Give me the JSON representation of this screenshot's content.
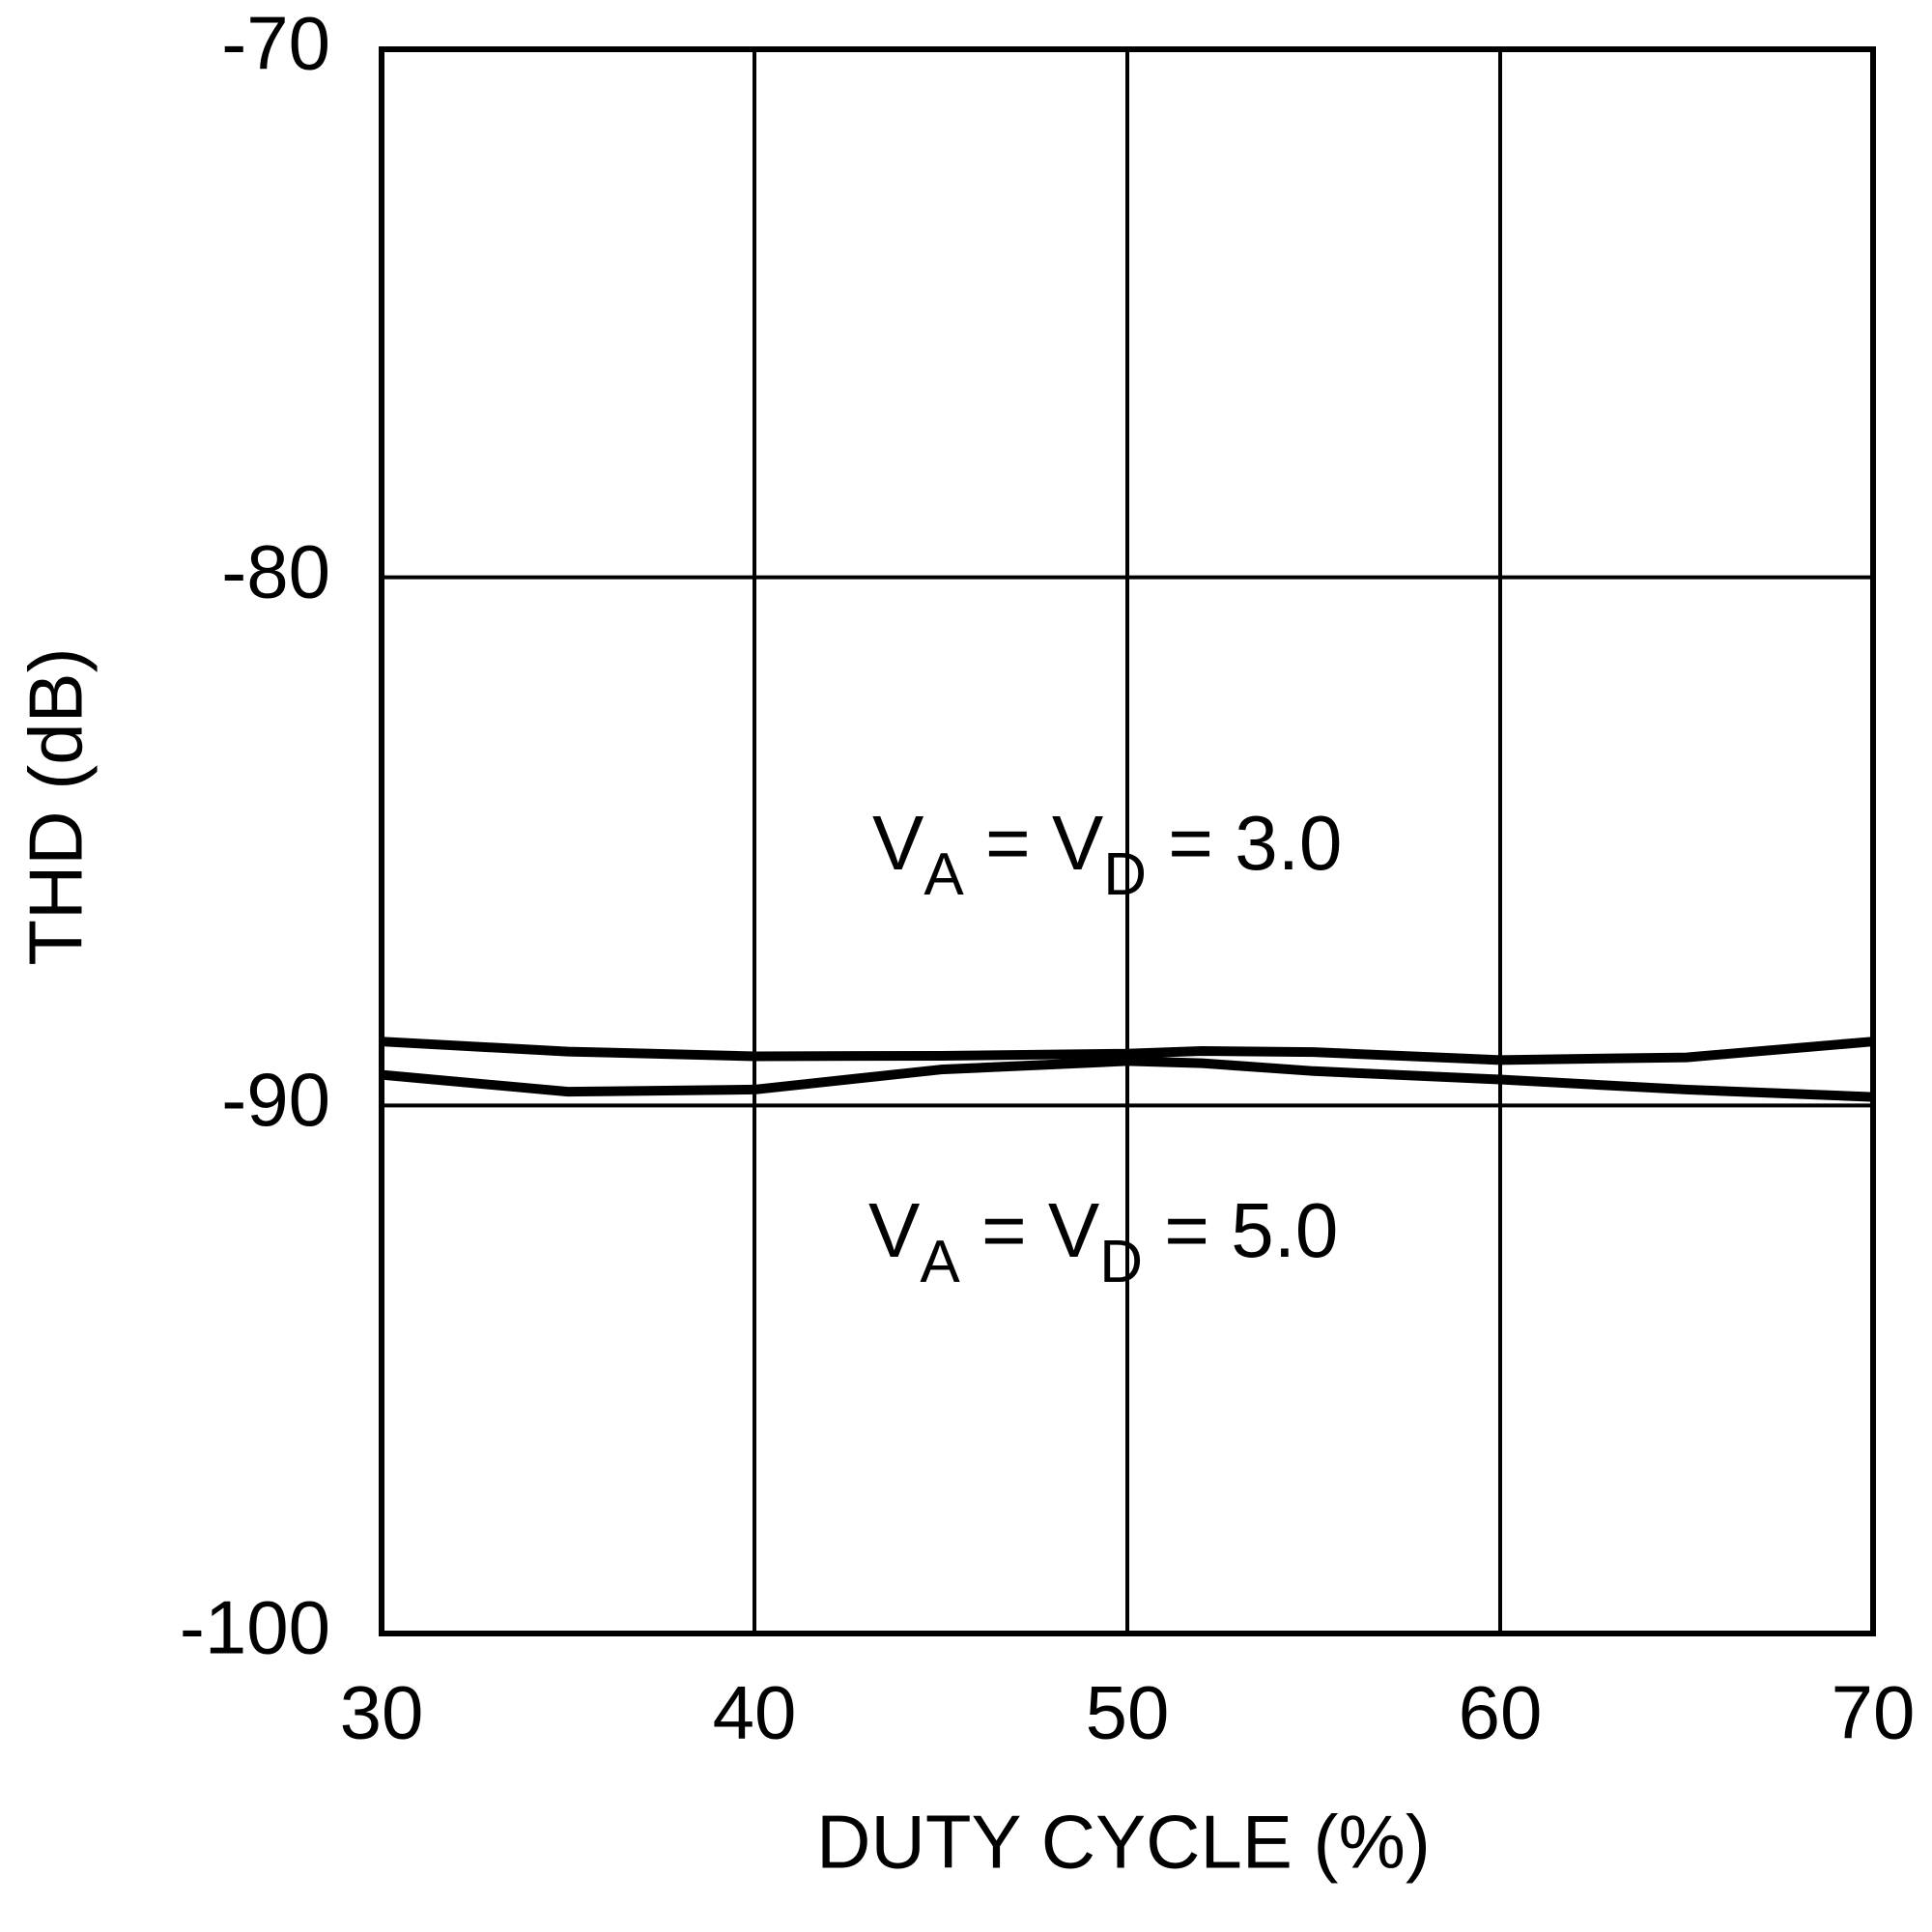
{
  "chart_data": {
    "type": "line",
    "x_label": "DUTY CYCLE (%)",
    "y_label": "THD (dB)",
    "x": [
      30,
      35,
      40,
      45,
      50,
      52,
      55,
      60,
      65,
      70
    ],
    "series": [
      {
        "label": [
          "V",
          "A",
          " = V",
          "D",
          " = 3.0"
        ],
        "color": "#000000",
        "values": [
          -88.79,
          -88.98,
          -89.07,
          -89.06,
          -89.02,
          -88.97,
          -88.99,
          -89.14,
          -89.09,
          -88.79
        ]
      },
      {
        "label": [
          "V",
          "A",
          " = V",
          "D",
          " = 5.0"
        ],
        "color": "#000000",
        "values": [
          -89.42,
          -89.74,
          -89.7,
          -89.32,
          -89.16,
          -89.2,
          -89.35,
          -89.51,
          -89.7,
          -89.84
        ]
      }
    ],
    "xlim": [
      30,
      70
    ],
    "xticks": [
      30,
      40,
      50,
      60,
      70
    ],
    "ylim": [
      -100,
      -70
    ],
    "yticks": [
      -100,
      -90,
      -80,
      -70
    ],
    "grid": true
  }
}
